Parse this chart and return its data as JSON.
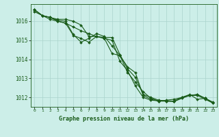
{
  "background_color": "#cceee8",
  "grid_color": "#aad4cc",
  "line_color": "#1a5c1a",
  "marker_color": "#1a5c1a",
  "title": "Graphe pression niveau de la mer (hPa)",
  "xlim": [
    -0.5,
    23.5
  ],
  "ylim": [
    1011.5,
    1016.9
  ],
  "yticks": [
    1012,
    1013,
    1014,
    1015,
    1016
  ],
  "xticks": [
    0,
    1,
    2,
    3,
    4,
    5,
    6,
    7,
    8,
    9,
    10,
    11,
    12,
    13,
    14,
    15,
    16,
    17,
    18,
    19,
    20,
    21,
    22,
    23
  ],
  "xtick_labels": [
    "0",
    "1",
    "2",
    "3",
    "4",
    "5",
    "6",
    "7",
    "8",
    "9",
    "10",
    "11",
    "12",
    "13",
    "14",
    "15",
    "16",
    "17",
    "18",
    "19",
    "20",
    "21",
    "22",
    "23"
  ],
  "series": [
    [
      1016.6,
      1016.3,
      1016.2,
      1016.1,
      1016.1,
      1016.0,
      1015.8,
      1015.2,
      1015.2,
      1015.1,
      1014.3,
      1014.2,
      1013.6,
      1013.3,
      1012.1,
      1011.9,
      1011.8,
      1011.8,
      1011.8,
      1012.0,
      1012.1,
      1012.1,
      1011.9,
      1011.7
    ],
    [
      1016.5,
      1016.3,
      1016.2,
      1016.05,
      1016.0,
      1015.3,
      1014.9,
      1015.1,
      1015.35,
      1015.2,
      1014.7,
      1014.2,
      1013.3,
      1012.8,
      1012.3,
      1011.95,
      1011.8,
      1011.85,
      1011.9,
      1012.0,
      1012.15,
      1011.9,
      1011.95,
      1011.7
    ],
    [
      1016.6,
      1016.3,
      1016.2,
      1016.0,
      1015.9,
      1015.25,
      1015.1,
      1014.9,
      1015.2,
      1015.15,
      1015.15,
      1014.25,
      1013.5,
      1013.05,
      1012.15,
      1012.0,
      1011.85,
      1011.82,
      1011.8,
      1012.0,
      1012.1,
      1012.15,
      1011.95,
      1011.7
    ],
    [
      1016.6,
      1016.3,
      1016.1,
      1016.0,
      1015.9,
      1015.7,
      1015.5,
      1015.35,
      1015.2,
      1015.1,
      1015.0,
      1013.9,
      1013.4,
      1012.6,
      1012.0,
      1011.85,
      1011.82,
      1011.8,
      1011.78,
      1011.95,
      1012.1,
      1012.15,
      1011.95,
      1011.75
    ]
  ]
}
